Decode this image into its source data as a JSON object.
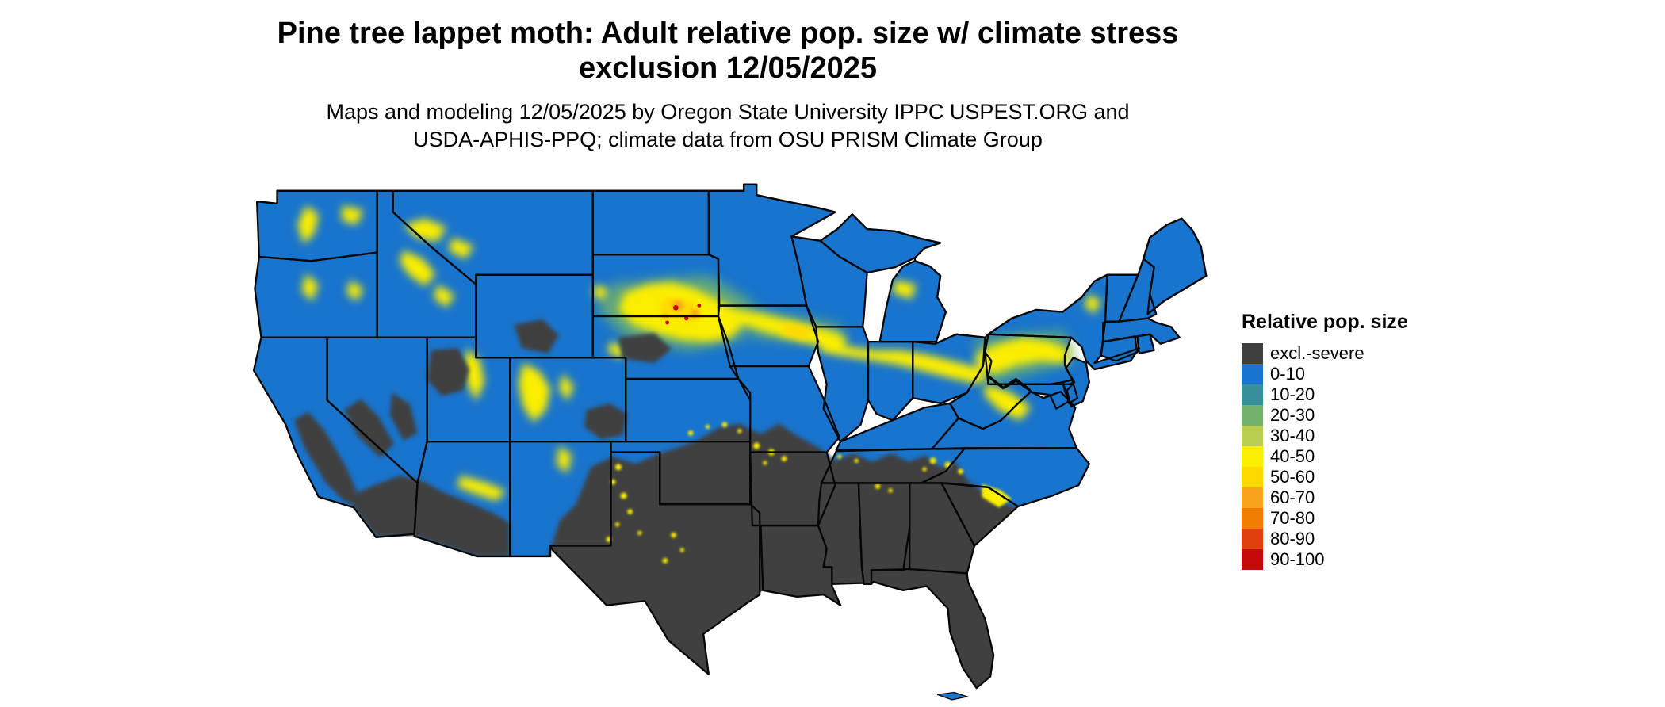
{
  "figure": {
    "title_line1": "Pine tree lappet moth: Adult relative pop. size w/ climate stress",
    "title_line2": "exclusion 12/05/2025",
    "subtitle_line1": "Maps and modeling 12/05/2025 by Oregon State University IPPC USPEST.ORG and",
    "subtitle_line2": "USDA-APHIS-PPQ; climate data from OSU PRISM Climate Group"
  },
  "legend": {
    "title": "Relative pop. size",
    "items": [
      {
        "label": "excl.-severe",
        "color": "#3F3F3F"
      },
      {
        "label": "0-10",
        "color": "#1874CD"
      },
      {
        "label": "10-20",
        "color": "#38909B"
      },
      {
        "label": "20-30",
        "color": "#72B26A"
      },
      {
        "label": "30-40",
        "color": "#B9CE4F"
      },
      {
        "label": "40-50",
        "color": "#FBEE00"
      },
      {
        "label": "50-60",
        "color": "#FFD800"
      },
      {
        "label": "60-70",
        "color": "#FAA41B"
      },
      {
        "label": "70-80",
        "color": "#EF7D00"
      },
      {
        "label": "80-90",
        "color": "#DE3F0C"
      },
      {
        "label": "90-100",
        "color": "#C40A0A"
      }
    ]
  }
}
